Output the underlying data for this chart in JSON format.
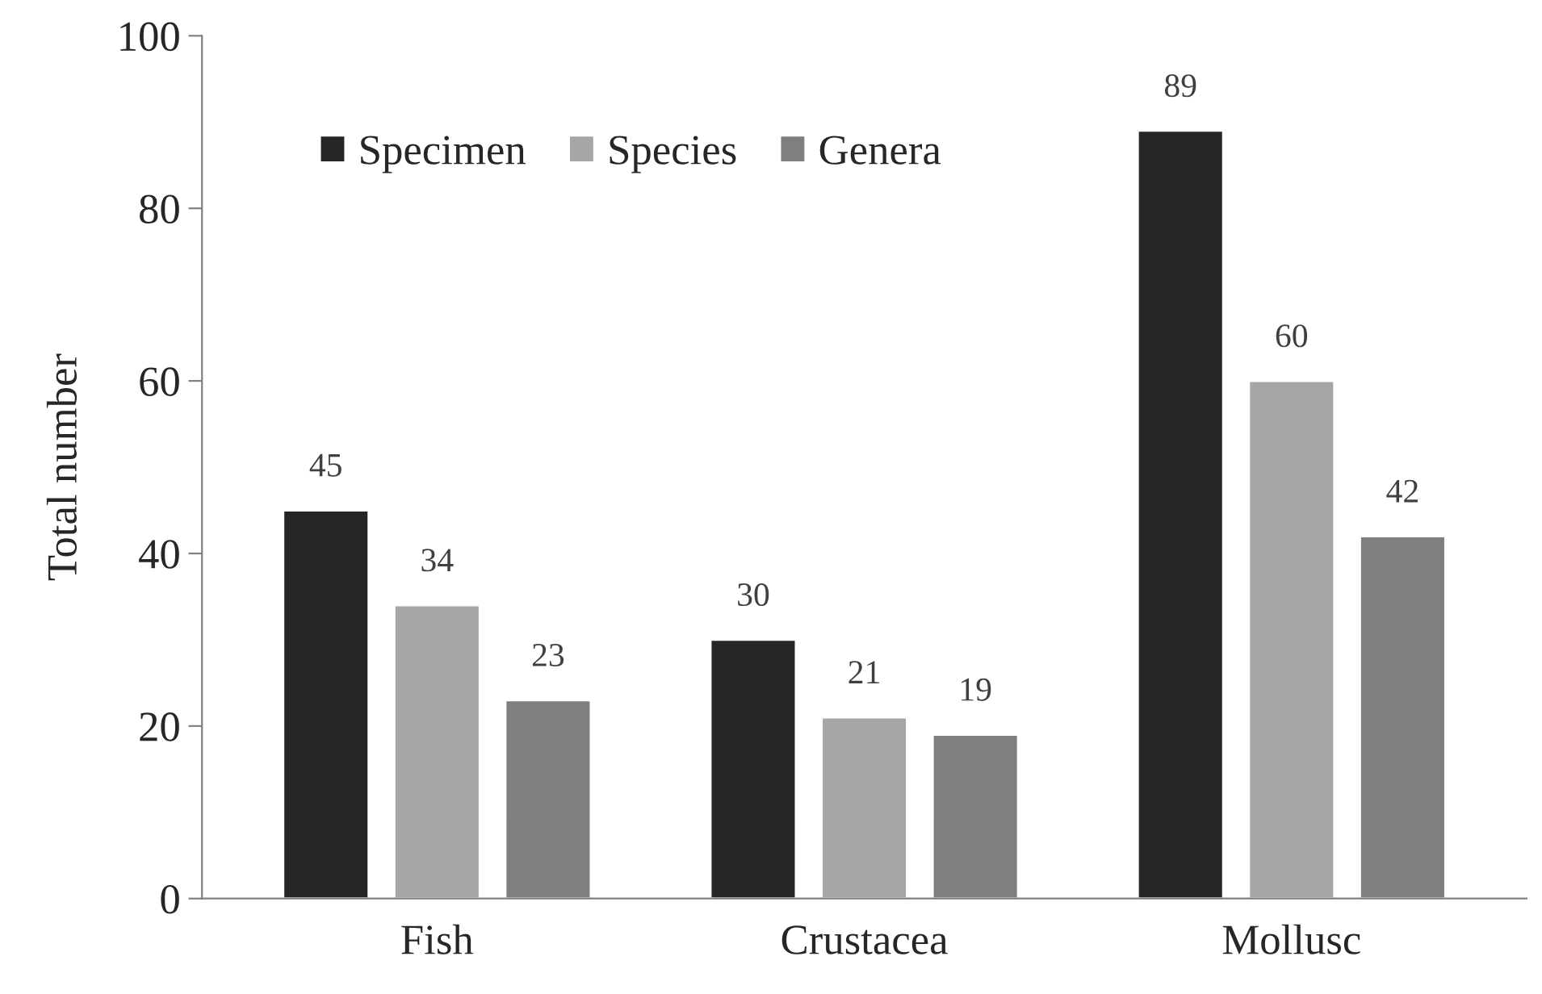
{
  "chart_data": {
    "type": "bar",
    "ylabel": "Total number",
    "categories": [
      "Fish",
      "Crustacea",
      "Mollusc"
    ],
    "series": [
      {
        "name": "Specimen",
        "color": "#262626",
        "values": [
          45,
          30,
          89
        ]
      },
      {
        "name": "Species",
        "color": "#a6a6a6",
        "values": [
          34,
          21,
          60
        ]
      },
      {
        "name": "Genera",
        "color": "#7f7f7f",
        "values": [
          23,
          19,
          42
        ]
      }
    ],
    "ylim": [
      0,
      100
    ],
    "yticks": [
      0,
      20,
      40,
      60,
      80,
      100
    ],
    "data_labels": true,
    "legend": "top left",
    "grid": false
  }
}
